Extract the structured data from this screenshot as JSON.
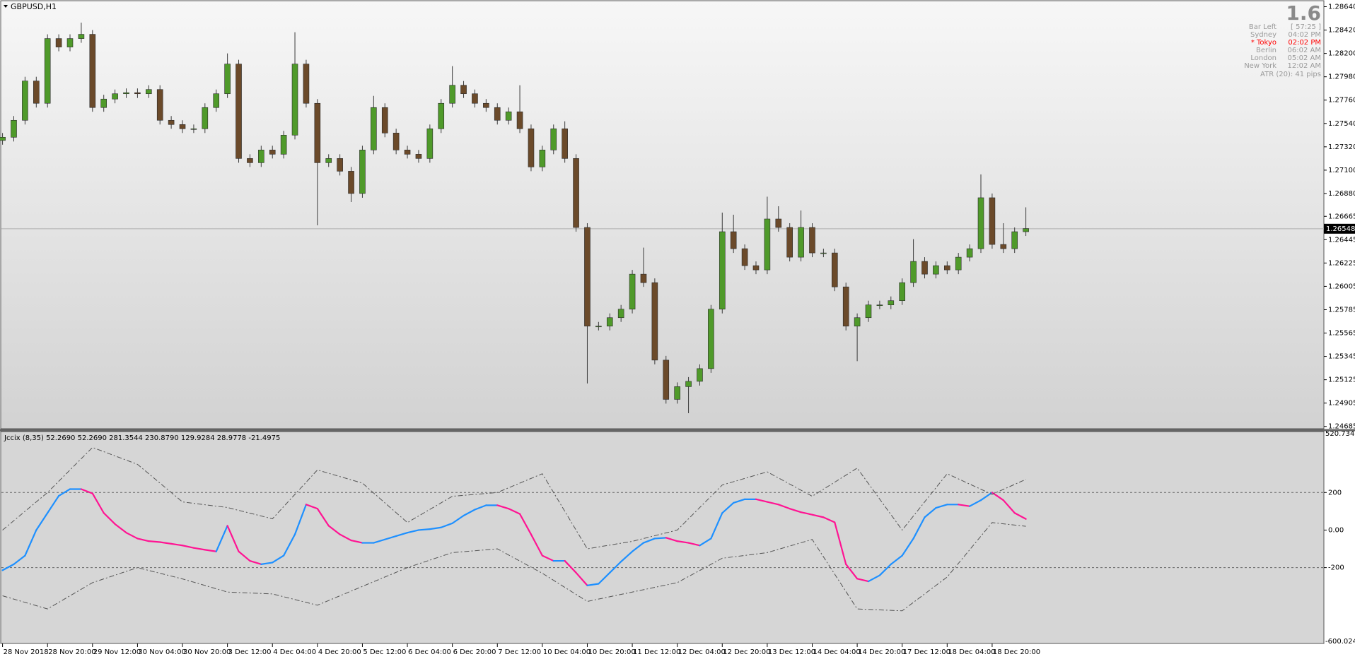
{
  "chart_data": [
    {
      "type": "candlestick",
      "title": "GBPUSD,H1",
      "up_color": "#4f9a2a",
      "down_color": "#6b4a2a",
      "wick_color": "#3a3a3a",
      "xlim": [
        -0.1,
        117.5
      ],
      "ylim": [
        1.2467,
        1.2869
      ],
      "yticks": [
        {
          "value": 1.2864,
          "label": "1.28640"
        },
        {
          "value": 1.2842,
          "label": "1.28420"
        },
        {
          "value": 1.282,
          "label": "1.28200"
        },
        {
          "value": 1.2798,
          "label": "1.27980"
        },
        {
          "value": 1.2776,
          "label": "1.27760"
        },
        {
          "value": 1.2754,
          "label": "1.27540"
        },
        {
          "value": 1.2732,
          "label": "1.27320"
        },
        {
          "value": 1.271,
          "label": "1.27100"
        },
        {
          "value": 1.2688,
          "label": "1.26880"
        },
        1.26665,
        1.26445,
        1.26225,
        1.26005,
        1.25785,
        1.25565,
        1.25345,
        1.25125,
        1.24905,
        1.24685
      ],
      "current_price": 1.26548,
      "open": [
        1.2738,
        1.2741,
        1.2757,
        1.2794,
        1.2773,
        1.2834,
        1.2826,
        1.2834,
        1.2838,
        1.2769,
        1.2777,
        1.2782,
        1.2783,
        1.2782,
        1.2786,
        1.2757,
        1.2753,
        1.2749,
        1.2749,
        1.2769,
        1.2782,
        1.281,
        1.2721,
        1.2717,
        1.2729,
        1.2725,
        1.2743,
        1.281,
        1.2773,
        1.2717,
        1.2721,
        1.2709,
        1.2688,
        1.2729,
        1.2769,
        1.2745,
        1.2729,
        1.2725,
        1.2721,
        1.2749,
        1.2773,
        1.279,
        1.2782,
        1.2773,
        1.2769,
        1.2757,
        1.2765,
        1.2749,
        1.2713,
        1.2729,
        1.2749,
        1.2721,
        1.2656,
        1.2563,
        1.2563,
        1.2571,
        1.2579,
        1.2612,
        1.2604,
        1.2531,
        1.2494,
        1.2506,
        1.2511,
        1.2523,
        1.2579,
        1.2652,
        1.2636,
        1.262,
        1.2616,
        1.2664,
        1.2656,
        1.2628,
        1.2656,
        1.2632,
        1.2632,
        1.26,
        1.2563,
        1.2571,
        1.2583,
        1.2583,
        1.2587,
        1.2604,
        1.2624,
        1.2612,
        1.262,
        1.2616,
        1.2628,
        1.2636,
        1.2684,
        1.264,
        1.2636,
        1.2652
      ],
      "high": [
        1.2745,
        1.2761,
        1.2798,
        1.2798,
        1.2838,
        1.2838,
        1.2838,
        1.2849,
        1.2842,
        1.2781,
        1.2786,
        1.2787,
        1.2787,
        1.279,
        1.279,
        1.2761,
        1.2757,
        1.2753,
        1.2773,
        1.2786,
        1.282,
        1.2814,
        1.2725,
        1.2733,
        1.2733,
        1.2747,
        1.284,
        1.2814,
        1.2777,
        1.2725,
        1.2725,
        1.2713,
        1.2733,
        1.278,
        1.2773,
        1.2749,
        1.2733,
        1.2729,
        1.2753,
        1.2777,
        1.2808,
        1.2794,
        1.2786,
        1.2777,
        1.2773,
        1.2769,
        1.279,
        1.2753,
        1.2733,
        1.2753,
        1.2756,
        1.2725,
        1.266,
        1.2567,
        1.2575,
        1.2583,
        1.2616,
        1.2637,
        1.2608,
        1.2535,
        1.251,
        1.2515,
        1.2527,
        1.2583,
        1.267,
        1.2668,
        1.264,
        1.2624,
        1.2685,
        1.2676,
        1.266,
        1.2672,
        1.266,
        1.2636,
        1.2636,
        1.2604,
        1.2575,
        1.2587,
        1.2587,
        1.2591,
        1.2608,
        1.2645,
        1.2628,
        1.2624,
        1.2624,
        1.2632,
        1.264,
        1.2706,
        1.2688,
        1.266,
        1.2656,
        1.2675
      ],
      "low": [
        1.2734,
        1.2737,
        1.2753,
        1.2769,
        1.2769,
        1.2822,
        1.2822,
        1.283,
        1.2765,
        1.2765,
        1.2773,
        1.2778,
        1.2778,
        1.2778,
        1.2753,
        1.2749,
        1.2745,
        1.2745,
        1.2745,
        1.2765,
        1.2778,
        1.2717,
        1.2713,
        1.2713,
        1.2721,
        1.2721,
        1.2739,
        1.2769,
        1.2658,
        1.2713,
        1.2705,
        1.268,
        1.2684,
        1.2725,
        1.2741,
        1.2725,
        1.2721,
        1.2717,
        1.2717,
        1.2745,
        1.2769,
        1.2778,
        1.2769,
        1.2765,
        1.2753,
        1.2753,
        1.2745,
        1.2709,
        1.2709,
        1.2725,
        1.2717,
        1.2652,
        1.2509,
        1.2559,
        1.2559,
        1.2567,
        1.2575,
        1.26,
        1.2527,
        1.249,
        1.249,
        1.2481,
        1.2507,
        1.2519,
        1.2575,
        1.2632,
        1.2616,
        1.2612,
        1.2612,
        1.2652,
        1.2624,
        1.2624,
        1.2628,
        1.2628,
        1.2596,
        1.2559,
        1.253,
        1.2567,
        1.2579,
        1.2579,
        1.2583,
        1.26,
        1.2608,
        1.2608,
        1.2612,
        1.2612,
        1.2624,
        1.2632,
        1.2636,
        1.2632,
        1.2632,
        1.2648
      ],
      "close": [
        1.2741,
        1.2757,
        1.2794,
        1.2773,
        1.2834,
        1.2826,
        1.2834,
        1.2838,
        1.2769,
        1.2777,
        1.2782,
        1.2783,
        1.2782,
        1.2786,
        1.2757,
        1.2753,
        1.2749,
        1.2749,
        1.2769,
        1.2782,
        1.281,
        1.2721,
        1.2717,
        1.2729,
        1.2725,
        1.2743,
        1.281,
        1.2773,
        1.2717,
        1.2721,
        1.2709,
        1.2688,
        1.2729,
        1.2769,
        1.2745,
        1.2729,
        1.2725,
        1.2721,
        1.2749,
        1.2773,
        1.279,
        1.2782,
        1.2773,
        1.2769,
        1.2757,
        1.2765,
        1.2749,
        1.2713,
        1.2729,
        1.2749,
        1.2721,
        1.2656,
        1.2563,
        1.2563,
        1.2571,
        1.2579,
        1.2612,
        1.2604,
        1.2531,
        1.2494,
        1.2506,
        1.2511,
        1.2523,
        1.2579,
        1.2652,
        1.2636,
        1.262,
        1.2616,
        1.2664,
        1.2656,
        1.2628,
        1.2656,
        1.2632,
        1.2632,
        1.26,
        1.2563,
        1.2571,
        1.2583,
        1.2583,
        1.2587,
        1.2604,
        1.2624,
        1.2612,
        1.262,
        1.2616,
        1.2628,
        1.2636,
        1.2684,
        1.264,
        1.2636,
        1.2652,
        1.2655
      ]
    },
    {
      "type": "line",
      "title": "Jccix (8,35) 52.2690 52.2690 281.3544 230.8790 129.9284 28.9778 -21.4975",
      "xlim": [
        -0.1,
        117.5
      ],
      "ylim": [
        -600.0241,
        520.7348
      ],
      "yticks": [
        200,
        {
          "value": 0,
          "label": "0.00"
        },
        -200
      ],
      "levels": [
        200,
        -200
      ],
      "xticks": [
        {
          "value": 0,
          "label": "28 Nov 2018"
        },
        {
          "value": 4,
          "label": "28 Nov 20:00"
        },
        {
          "value": 8,
          "label": "29 Nov 12:00"
        },
        {
          "value": 12,
          "label": "30 Nov 04:00"
        },
        {
          "value": 16,
          "label": "30 Nov 20:00"
        },
        {
          "value": 20,
          "label": "3 Dec 12:00"
        },
        {
          "value": 24,
          "label": "4 Dec 04:00"
        },
        {
          "value": 28,
          "label": "4 Dec 20:00"
        },
        {
          "value": 32,
          "label": "5 Dec 12:00"
        },
        {
          "value": 36,
          "label": "6 Dec 04:00"
        },
        {
          "value": 40,
          "label": "6 Dec 20:00"
        },
        {
          "value": 44,
          "label": "7 Dec 12:00"
        },
        {
          "value": 48,
          "label": "10 Dec 04:00"
        },
        {
          "value": 52,
          "label": "10 Dec 20:00"
        },
        {
          "value": 56,
          "label": "11 Dec 12:00"
        },
        {
          "value": 60,
          "label": "12 Dec 04:00"
        },
        {
          "value": 64,
          "label": "12 Dec 20:00"
        },
        {
          "value": 68,
          "label": "13 Dec 12:00"
        },
        {
          "value": 72,
          "label": "14 Dec 04:00"
        },
        {
          "value": 76,
          "label": "14 Dec 20:00"
        },
        {
          "value": 80,
          "label": "17 Dec 12:00"
        },
        {
          "value": 84,
          "label": "18 Dec 04:00"
        },
        {
          "value": 88,
          "label": "18 Dec 20:00"
        }
      ],
      "up_color": "#1e90ff",
      "down_color": "#ff1493",
      "series": [
        {
          "values": [
            -214,
            -182,
            -136,
            0,
            91,
            182,
            218,
            218,
            195,
            91,
            32,
            -14,
            -45,
            -59,
            -64,
            -73,
            -82,
            -95,
            -105,
            -114,
            23,
            -114,
            -164,
            -182,
            -173,
            -136,
            -23,
            136,
            114,
            23,
            -23,
            -55,
            -68,
            -68,
            -50,
            -32,
            -14,
            0,
            5,
            14,
            36,
            77,
            109,
            132,
            132,
            114,
            86,
            -23,
            -136,
            -164,
            -164,
            -227,
            -295,
            -286,
            -227,
            -168,
            -114,
            -68,
            -45,
            -41,
            -59,
            -68,
            -82,
            -45,
            91,
            145,
            164,
            164,
            150,
            136,
            114,
            95,
            82,
            68,
            41,
            -182,
            -259,
            -273,
            -241,
            -182,
            -136,
            -45,
            68,
            118,
            136,
            136,
            127,
            159,
            200,
            159,
            91,
            59
          ]
        },
        {
          "color": "#555555",
          "x": [
            0,
            4,
            8,
            12,
            16,
            20,
            24,
            28,
            32,
            36,
            40,
            44,
            48,
            52,
            56,
            60,
            64,
            68,
            72,
            76,
            80,
            84,
            88,
            91
          ],
          "values": [
            0,
            200,
            440,
            350,
            150,
            120,
            60,
            320,
            250,
            40,
            180,
            200,
            300,
            -100,
            -60,
            0,
            240,
            310,
            180,
            330,
            0,
            300,
            190,
            270
          ]
        },
        {
          "color": "#555555",
          "x": [
            0,
            4,
            8,
            12,
            16,
            20,
            24,
            28,
            32,
            36,
            40,
            44,
            48,
            52,
            56,
            60,
            64,
            68,
            72,
            76,
            80,
            84,
            88,
            91
          ],
          "values": [
            -350,
            -420,
            -280,
            -200,
            -260,
            -330,
            -340,
            -400,
            -300,
            -200,
            -120,
            -100,
            -230,
            -380,
            -330,
            -280,
            -150,
            -120,
            -50,
            -420,
            -430,
            -250,
            40,
            20
          ]
        }
      ]
    }
  ],
  "info_panel": {
    "big": "1.6",
    "rows": [
      {
        "label": "Bar Left",
        "value": "[ 57:25 ]",
        "color": "#9a9a9a"
      },
      {
        "label": "Sydney",
        "value": "04:02 PM",
        "color": "#9a9a9a"
      },
      {
        "label": "* Tokyo",
        "value": "02:02 PM",
        "color": "#ff0000"
      },
      {
        "label": "Berlin",
        "value": "06:02 AM",
        "color": "#9a9a9a"
      },
      {
        "label": "London",
        "value": "05:02 AM",
        "color": "#9a9a9a"
      },
      {
        "label": "New York",
        "value": "12:02 AM",
        "color": "#9a9a9a"
      }
    ],
    "footer": "ATR (20): 41 pips"
  }
}
